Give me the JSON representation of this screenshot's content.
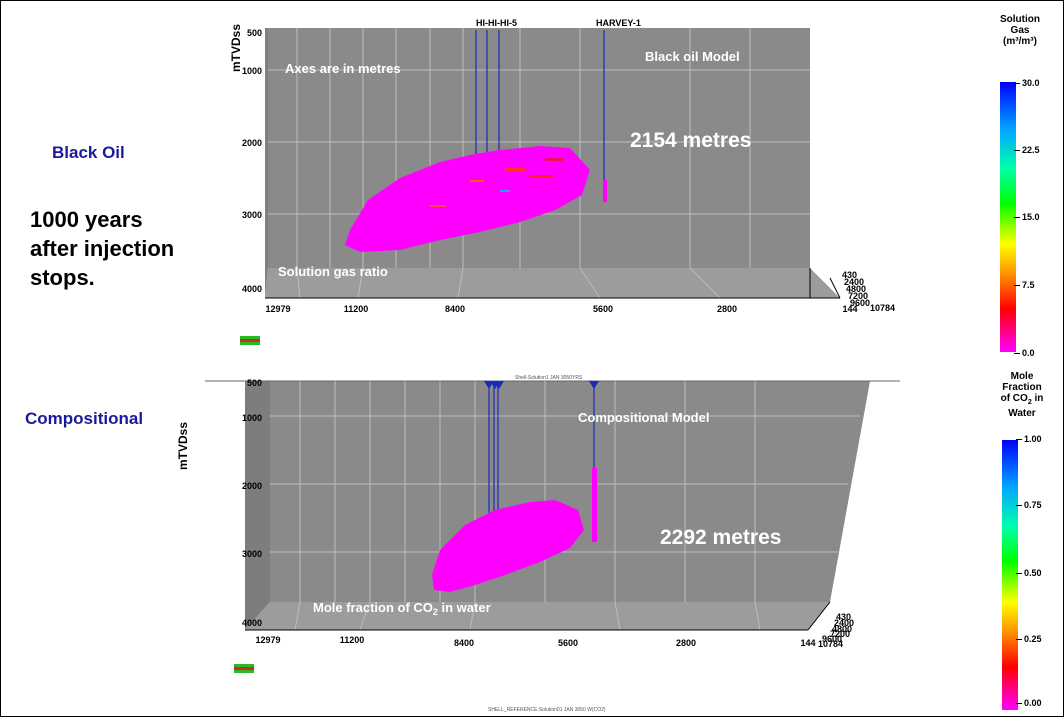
{
  "side_labels": {
    "black_oil": "Black Oil",
    "compositional": "Compositional",
    "note_line1": "1000 years",
    "note_line2": "after injection",
    "note_line3": "stops."
  },
  "panel_top": {
    "title": "Black oil Model",
    "axes_note": "Axes are in metres",
    "measure": "2154 metres",
    "property": "Solution gas ratio",
    "y_axis_label": "mTVDss",
    "y_ticks": [
      "500",
      "1000",
      "2000",
      "3000",
      "4000"
    ],
    "x_ticks": [
      "12979",
      "11200",
      "8400",
      "5600",
      "2800",
      "144"
    ],
    "depth_ticks": [
      "430",
      "2400",
      "4800",
      "7200",
      "9600",
      "10784"
    ],
    "wells": [
      "HI-HI-HI-5",
      "HARVEY-1"
    ]
  },
  "panel_bottom": {
    "title": "Compositional Model",
    "measure": "2292 metres",
    "property_prefix": "Mole fraction of CO",
    "property_sub": "2",
    "property_suffix": " in water",
    "y_axis_label": "mTVDss",
    "y_ticks": [
      "500",
      "1000",
      "2000",
      "3000",
      "4000"
    ],
    "x_ticks": [
      "12979",
      "11200",
      "8400",
      "5600",
      "2800",
      "144"
    ],
    "depth_ticks": [
      "430",
      "2400",
      "4800",
      "7200",
      "9600",
      "10784"
    ],
    "top_caption": "Shell-Solution1 JAN 3050YRS",
    "bottom_caption": "SHELL_REFERENCE:Solution01 JAN 3050 W(CO2)"
  },
  "legend_top": {
    "title_1": "Solution",
    "title_2": "Gas",
    "title_3": "(m³/m³)",
    "ticks": [
      "30.0",
      "22.5",
      "15.0",
      "7.5",
      "0.0"
    ]
  },
  "legend_bottom": {
    "title_1": "Mole",
    "title_2": "Fraction",
    "title_3a": "of CO",
    "title_3b": "2",
    "title_3c": " in",
    "title_4": "Water",
    "ticks": [
      "1.00",
      "0.75",
      "0.50",
      "0.25",
      "0.00"
    ]
  },
  "colors": {
    "panel_bg": "#8a8a8a",
    "plume": "#ff00ff",
    "well": "#1a2bb8",
    "label_blue": "#1a1aa0"
  }
}
